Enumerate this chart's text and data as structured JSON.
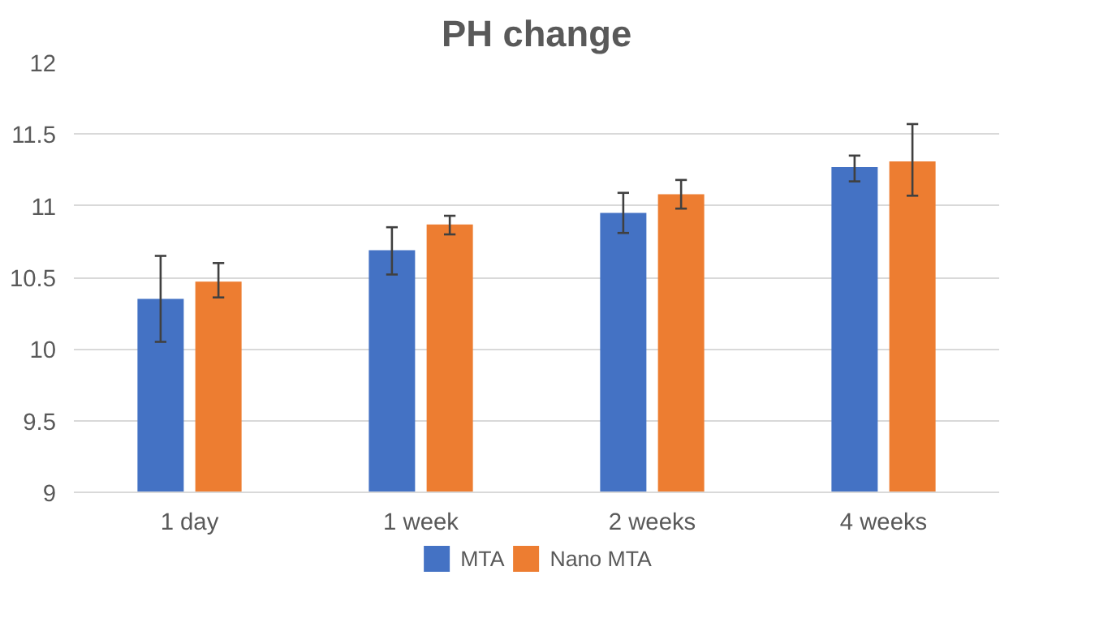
{
  "chart_data": {
    "type": "bar",
    "title": "PH change",
    "categories": [
      "1 day",
      "1 week",
      "2 weeks",
      "4 weeks"
    ],
    "series": [
      {
        "name": "MTA",
        "color": "#4472c4",
        "values": [
          10.35,
          10.69,
          10.95,
          11.27
        ],
        "errors": [
          [
            10.05,
            10.65
          ],
          [
            10.52,
            10.85
          ],
          [
            10.81,
            11.09
          ],
          [
            11.17,
            11.35
          ]
        ]
      },
      {
        "name": "Nano MTA",
        "color": "#ed7d31",
        "values": [
          10.47,
          10.87,
          11.08,
          11.31
        ],
        "errors": [
          [
            10.36,
            10.6
          ],
          [
            10.8,
            10.93
          ],
          [
            10.98,
            11.18
          ],
          [
            11.07,
            11.57
          ]
        ]
      }
    ],
    "ylim": [
      9,
      12
    ],
    "yticks": [
      9,
      9.5,
      10,
      10.5,
      11,
      11.5,
      12
    ],
    "grid": "y",
    "legend": "bottom"
  }
}
